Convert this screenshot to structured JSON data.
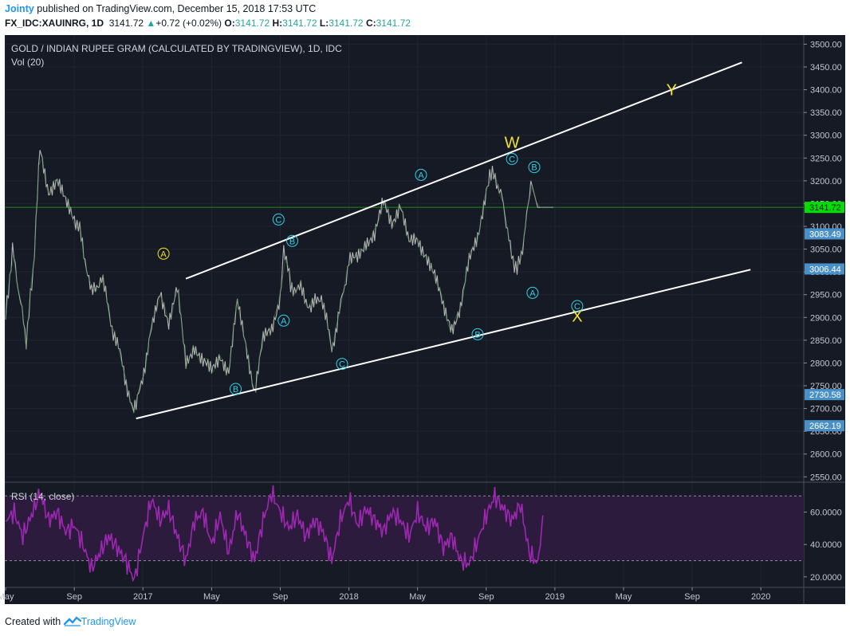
{
  "header": {
    "author": "Jointy",
    "published": " published on TradingView.com, December 15, 2018 17:53 UTC",
    "symbol": "FX_IDC:XAUINRG, 1D",
    "last": "3141.72",
    "change": "+0.72 (+0.02%)",
    "open_label": "O:",
    "open": "3141.72",
    "high_label": "H:",
    "high": "3141.72",
    "low_label": "L:",
    "low": "3141.72",
    "close_label": "C:",
    "close": "3141.72"
  },
  "footer": {
    "created_with": "Created with",
    "brand": "TradingView"
  },
  "colors": {
    "background": "#161a25",
    "price_line": "#b4b4b4",
    "rsi": "#9c27b0",
    "rsi_band": "#2d1b3d",
    "wave_label": "#33d1e6",
    "wxy": "#f0e233",
    "channel": "#ffffff",
    "last_tag": "#00e000",
    "axis_tag": "#4a90c8"
  },
  "chart_data": {
    "type": "line",
    "title": "GOLD / INDIAN RUPEE GRAM (CALCULATED BY TRADINGVIEW), 1D, IDC",
    "subtitle": "Vol (20)",
    "x_ticks": [
      "May",
      "Sep",
      "2017",
      "May",
      "Sep",
      "2018",
      "May",
      "Sep",
      "2019",
      "May",
      "Sep",
      "2020"
    ],
    "x_tick_months": [
      -8,
      -4,
      0,
      4,
      8,
      12,
      16,
      20,
      24,
      28,
      32,
      36
    ],
    "x_range_months": [
      -8.05,
      38.5
    ],
    "y_range": [
      2540,
      3520
    ],
    "y_ticks": [
      "3500.00",
      "3450.00",
      "3400.00",
      "3350.00",
      "3300.00",
      "3250.00",
      "3200.00",
      "3150.00",
      "3100.00",
      "3050.00",
      "3000.00",
      "2950.00",
      "2900.00",
      "2850.00",
      "2800.00",
      "2750.00",
      "2700.00",
      "2650.00",
      "2600.00",
      "2550.00"
    ],
    "price_series": {
      "months": [
        -8,
        -7.6,
        -7.2,
        -6.8,
        -6.4,
        -6,
        -5.5,
        -5,
        -4.5,
        -4,
        -3.6,
        -3,
        -2.4,
        -1.8,
        -1.2,
        -0.6,
        -0.4,
        0.5,
        1,
        1.5,
        2,
        2.5,
        3,
        3.5,
        4,
        4.5,
        5,
        5.5,
        6,
        6.5,
        7,
        7.5,
        8,
        8.2,
        8.6,
        9.2,
        9.8,
        10.4,
        11,
        11.6,
        12,
        12.5,
        13,
        13.5,
        14,
        14.5,
        15,
        15.5,
        16,
        16.5,
        17,
        17.5,
        18,
        18.5,
        19,
        19.5,
        20,
        20.2,
        20.6,
        21,
        21.4,
        21.8,
        22.2,
        22.6,
        23,
        23.3,
        23.6,
        23.9
      ],
      "values": [
        2900,
        3050,
        2950,
        2850,
        3000,
        3270,
        3180,
        3200,
        3150,
        3120,
        3080,
        2950,
        2990,
        2880,
        2800,
        2690,
        2700,
        2870,
        2960,
        2890,
        2960,
        2800,
        2840,
        2800,
        2780,
        2820,
        2780,
        2930,
        2840,
        2740,
        2850,
        2870,
        2950,
        3060,
        2970,
        2960,
        2920,
        2950,
        2830,
        2940,
        3020,
        3030,
        3070,
        3080,
        3150,
        3110,
        3150,
        3060,
        3070,
        3040,
        2990,
        2920,
        2880,
        2920,
        3020,
        3080,
        3180,
        3220,
        3200,
        3150,
        3050,
        3000,
        3070,
        3200,
        3141.72,
        3141.72,
        3141.72,
        3141.72
      ]
    },
    "channel_lines": [
      {
        "name": "upper",
        "from": [
          2.5,
          2985
        ],
        "to": [
          34.9,
          3460
        ]
      },
      {
        "name": "lower",
        "from": [
          -0.4,
          2678
        ],
        "to": [
          35.4,
          3005
        ]
      }
    ],
    "horizontal_line": {
      "value": 3141.72,
      "label": "3141.72"
    },
    "price_tags": [
      {
        "value": 3141.72,
        "label": "3141.72",
        "kind": "last"
      },
      {
        "value": 3083.49,
        "label": "3083.49",
        "kind": "level"
      },
      {
        "value": 3006.44,
        "label": "3006.44",
        "kind": "level"
      },
      {
        "value": 2730.58,
        "label": "2730.58",
        "kind": "level"
      },
      {
        "value": 2662.19,
        "label": "2662.19",
        "kind": "level"
      }
    ],
    "wave_labels": [
      {
        "text": "A",
        "month": 1.2,
        "value": 3040,
        "kind": "sub",
        "color": "#f0e233"
      },
      {
        "text": "C",
        "month": 7.9,
        "value": 3115,
        "kind": "sub",
        "color": "#33d1e6"
      },
      {
        "text": "B",
        "month": 8.7,
        "value": 3068,
        "kind": "sub",
        "color": "#33d1e6"
      },
      {
        "text": "A",
        "month": 8.2,
        "value": 2893,
        "kind": "sub",
        "color": "#33d1e6"
      },
      {
        "text": "B",
        "month": 5.4,
        "value": 2743,
        "kind": "sub",
        "color": "#33d1e6"
      },
      {
        "text": "C",
        "month": 11.6,
        "value": 2798,
        "kind": "sub",
        "color": "#33d1e6"
      },
      {
        "text": "A",
        "month": 16.2,
        "value": 3213,
        "kind": "sub",
        "color": "#33d1e6"
      },
      {
        "text": "C",
        "month": 21.5,
        "value": 3248,
        "kind": "sub",
        "color": "#33d1e6"
      },
      {
        "text": "B",
        "month": 22.8,
        "value": 3230,
        "kind": "sub",
        "color": "#33d1e6"
      },
      {
        "text": "B",
        "month": 19.5,
        "value": 2863,
        "kind": "sub",
        "color": "#33d1e6"
      },
      {
        "text": "A",
        "month": 22.7,
        "value": 2954,
        "kind": "sub",
        "color": "#33d1e6"
      },
      {
        "text": "C",
        "month": 25.3,
        "value": 2925,
        "kind": "sub",
        "color": "#33d1e6"
      },
      {
        "text": "W",
        "month": 21.5,
        "value": 3285,
        "kind": "main",
        "color": "#f0e233"
      },
      {
        "text": "X",
        "month": 25.3,
        "value": 2903,
        "kind": "main",
        "color": "#f0e233"
      },
      {
        "text": "Y",
        "month": 30.8,
        "value": 3400,
        "kind": "main",
        "color": "#f0e233"
      }
    ],
    "rsi": {
      "title": "RSI (14, close)",
      "y_range": [
        14,
        78
      ],
      "y_ticks": [
        "60.0000",
        "40.0000",
        "20.0000"
      ],
      "bands": [
        70,
        30
      ],
      "months": [
        -8,
        -7.5,
        -7,
        -6.5,
        -6,
        -5.5,
        -5,
        -4.5,
        -4,
        -3.5,
        -3,
        -2.5,
        -2,
        -1.5,
        -1,
        -0.5,
        0,
        0.5,
        1,
        1.5,
        2,
        2.5,
        3,
        3.5,
        4,
        4.5,
        5,
        5.5,
        6,
        6.5,
        7,
        7.5,
        8,
        8.5,
        9,
        9.5,
        10,
        10.5,
        11,
        11.5,
        12,
        12.5,
        13,
        13.5,
        14,
        14.5,
        15,
        15.5,
        16,
        16.5,
        17,
        17.5,
        18,
        18.5,
        19,
        19.5,
        20,
        20.5,
        21,
        21.5,
        22,
        22.5,
        23,
        23.3
      ],
      "values": [
        55,
        60,
        45,
        58,
        72,
        55,
        60,
        48,
        52,
        40,
        25,
        35,
        45,
        38,
        30,
        18,
        45,
        68,
        55,
        62,
        45,
        30,
        55,
        60,
        40,
        58,
        35,
        60,
        45,
        30,
        55,
        72,
        60,
        50,
        58,
        45,
        55,
        48,
        30,
        55,
        68,
        52,
        62,
        55,
        48,
        60,
        55,
        45,
        60,
        50,
        55,
        38,
        45,
        30,
        28,
        42,
        58,
        70,
        62,
        55,
        65,
        35,
        28,
        58
      ]
    }
  }
}
